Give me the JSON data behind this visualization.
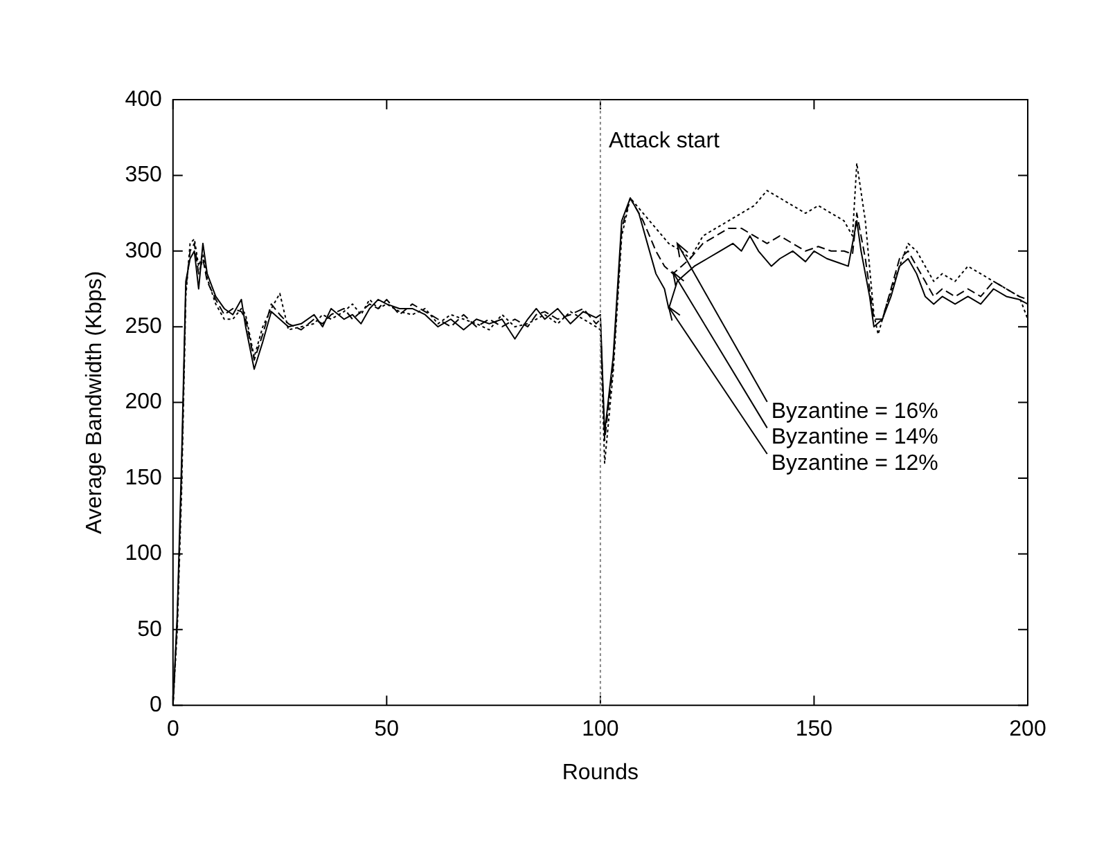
{
  "chart_data": {
    "type": "line",
    "xlabel": "Rounds",
    "ylabel": "Average Bandwidth (Kbps)",
    "xlim": [
      0,
      200
    ],
    "xticks": [
      0,
      50,
      100,
      150,
      200
    ],
    "ylim": [
      0,
      400
    ],
    "yticks": [
      0,
      50,
      100,
      150,
      200,
      250,
      300,
      350,
      400
    ],
    "grid": false,
    "legend": false,
    "marker": "none",
    "ref_lines": [
      {
        "axis": "x",
        "value": 100,
        "label": "Attack start",
        "color": "#888888",
        "line_style": "dotted"
      }
    ],
    "annotations": [
      {
        "text": "Byzantine = 16%",
        "x": 118,
        "y": 305
      },
      {
        "text": "Byzantine = 14%",
        "x": 117,
        "y": 286
      },
      {
        "text": "Byzantine = 12%",
        "x": 116,
        "y": 263
      }
    ],
    "series": [
      {
        "color": "#000000",
        "line_style": "solid",
        "x": [
          0,
          1,
          2,
          3,
          4,
          5,
          6,
          7,
          8,
          10,
          12,
          14,
          16,
          17,
          19,
          21,
          23,
          25,
          27,
          30,
          33,
          35,
          37,
          40,
          42,
          44,
          46,
          48,
          50,
          53,
          56,
          59,
          62,
          65,
          68,
          71,
          74,
          77,
          80,
          83,
          85,
          87,
          90,
          93,
          96,
          99,
          100,
          101,
          103,
          105,
          107,
          109,
          111,
          113,
          115,
          116,
          118,
          120,
          122,
          125,
          128,
          131,
          133,
          135,
          137,
          140,
          142,
          145,
          148,
          150,
          153,
          156,
          158,
          160,
          161,
          163,
          164,
          166,
          168,
          170,
          172,
          174,
          176,
          178,
          180,
          183,
          186,
          189,
          192,
          195,
          198,
          200
        ],
        "values": [
          0,
          60,
          160,
          280,
          295,
          300,
          275,
          305,
          285,
          270,
          262,
          258,
          268,
          250,
          222,
          240,
          260,
          255,
          250,
          252,
          258,
          250,
          262,
          255,
          258,
          252,
          262,
          268,
          265,
          262,
          262,
          258,
          250,
          255,
          248,
          255,
          252,
          255,
          242,
          255,
          262,
          255,
          262,
          252,
          260,
          256,
          258,
          180,
          230,
          320,
          335,
          325,
          305,
          285,
          275,
          262,
          280,
          285,
          290,
          295,
          300,
          305,
          300,
          310,
          300,
          290,
          295,
          300,
          293,
          300,
          295,
          292,
          290,
          320,
          300,
          270,
          250,
          255,
          270,
          290,
          295,
          285,
          270,
          265,
          270,
          265,
          270,
          265,
          275,
          270,
          268,
          265
        ]
      },
      {
        "color": "#000000",
        "line_style": "dashed",
        "x": [
          0,
          1,
          2,
          3,
          4,
          5,
          6,
          7,
          8,
          10,
          12,
          14,
          16,
          17,
          19,
          21,
          23,
          25,
          27,
          30,
          33,
          35,
          37,
          40,
          42,
          44,
          46,
          48,
          50,
          53,
          56,
          59,
          62,
          65,
          68,
          71,
          74,
          77,
          80,
          83,
          85,
          87,
          90,
          93,
          96,
          99,
          100,
          101,
          103,
          105,
          107,
          110,
          113,
          115,
          117,
          119,
          121,
          124,
          127,
          130,
          133,
          136,
          139,
          142,
          145,
          148,
          151,
          154,
          157,
          159,
          160,
          162,
          164,
          166,
          168,
          170,
          172,
          174,
          176,
          178,
          180,
          183,
          186,
          189,
          192,
          195,
          198,
          200
        ],
        "values": [
          0,
          55,
          150,
          275,
          300,
          305,
          285,
          295,
          280,
          268,
          258,
          262,
          260,
          255,
          228,
          245,
          265,
          258,
          252,
          248,
          255,
          252,
          258,
          262,
          255,
          260,
          265,
          262,
          268,
          258,
          265,
          260,
          255,
          250,
          258,
          250,
          255,
          250,
          255,
          250,
          258,
          260,
          255,
          258,
          262,
          252,
          255,
          175,
          225,
          315,
          335,
          320,
          300,
          290,
          285,
          290,
          295,
          305,
          310,
          315,
          315,
          310,
          305,
          310,
          305,
          300,
          303,
          300,
          300,
          298,
          325,
          295,
          255,
          255,
          275,
          295,
          300,
          290,
          280,
          270,
          275,
          270,
          275,
          270,
          280,
          275,
          270,
          268
        ]
      },
      {
        "color": "#000000",
        "line_style": "dotted",
        "x": [
          0,
          1,
          2,
          3,
          4,
          5,
          6,
          7,
          8,
          10,
          12,
          14,
          16,
          17,
          19,
          21,
          23,
          25,
          27,
          30,
          33,
          35,
          37,
          40,
          42,
          44,
          46,
          48,
          50,
          53,
          56,
          59,
          62,
          65,
          68,
          71,
          74,
          77,
          80,
          83,
          85,
          87,
          90,
          93,
          96,
          99,
          100,
          101,
          103,
          105,
          107,
          110,
          113,
          116,
          119,
          121,
          124,
          127,
          130,
          133,
          136,
          139,
          142,
          145,
          148,
          151,
          154,
          157,
          159,
          160,
          162,
          164,
          165,
          167,
          170,
          172,
          174,
          176,
          178,
          180,
          183,
          186,
          189,
          192,
          195,
          198,
          200
        ],
        "values": [
          0,
          50,
          140,
          270,
          305,
          308,
          290,
          298,
          282,
          265,
          255,
          255,
          262,
          258,
          230,
          250,
          262,
          272,
          248,
          250,
          252,
          258,
          255,
          260,
          265,
          258,
          268,
          262,
          265,
          260,
          258,
          262,
          252,
          258,
          255,
          252,
          248,
          258,
          250,
          252,
          255,
          258,
          252,
          260,
          255,
          250,
          248,
          160,
          220,
          310,
          335,
          325,
          315,
          305,
          300,
          295,
          310,
          315,
          320,
          325,
          330,
          340,
          335,
          330,
          325,
          330,
          325,
          320,
          310,
          358,
          320,
          258,
          245,
          265,
          290,
          305,
          300,
          290,
          280,
          285,
          280,
          290,
          285,
          280,
          275,
          270,
          255
        ]
      }
    ]
  }
}
